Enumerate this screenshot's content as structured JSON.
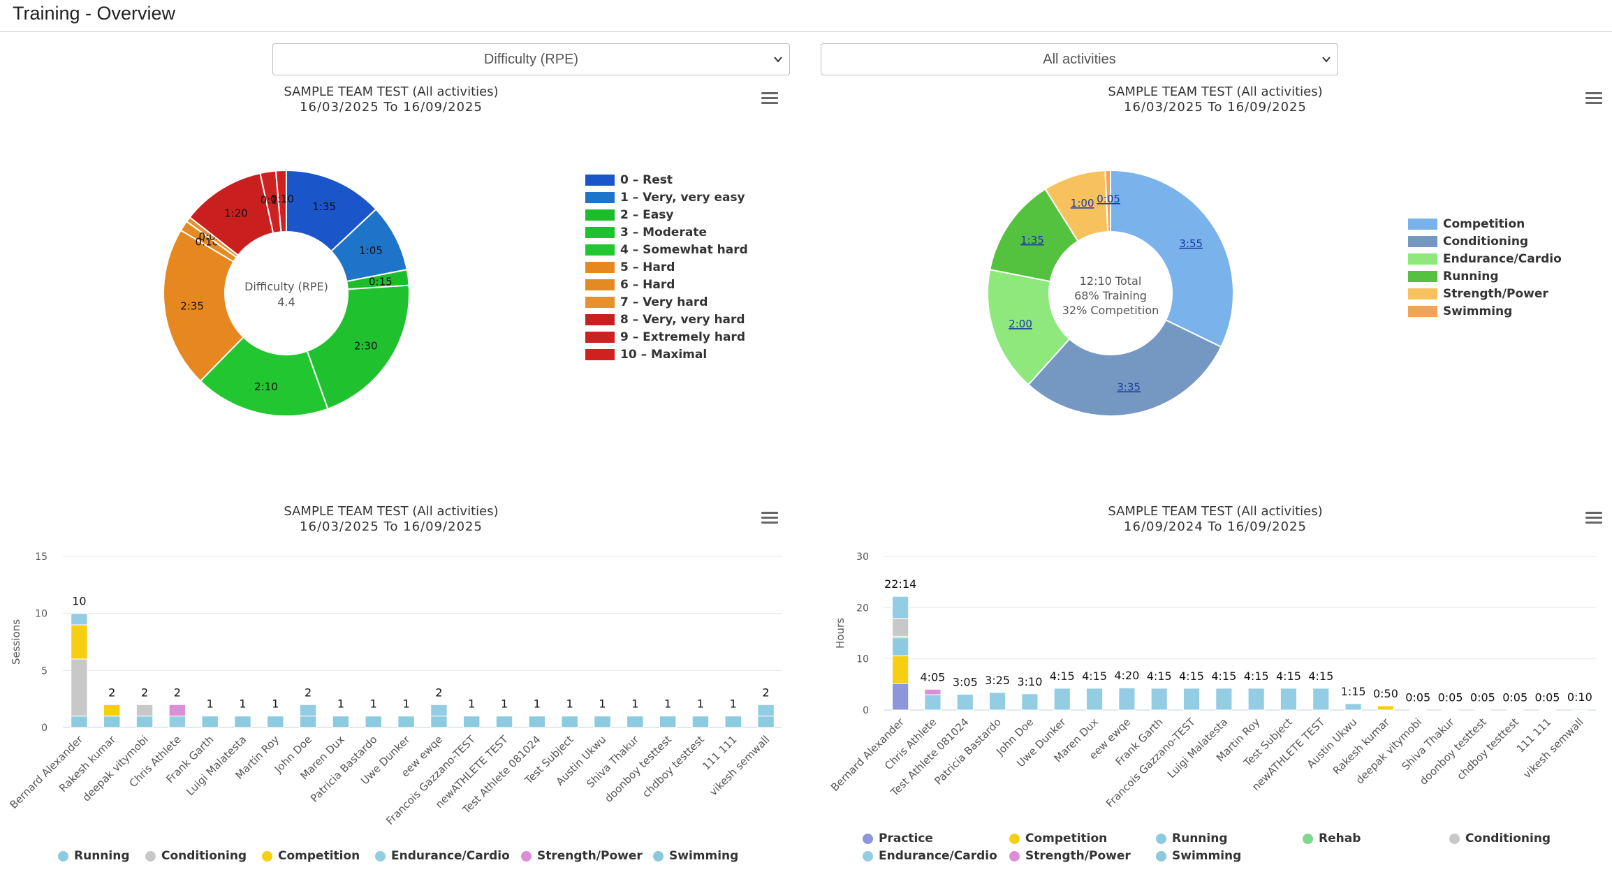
{
  "page": {
    "title": "Training - Overview"
  },
  "filters": {
    "left_select": "Difficulty (RPE)",
    "right_select": "All activities"
  },
  "chart_data": [
    {
      "type": "pie",
      "title": "SAMPLE TEAM TEST (All activities)",
      "subtitle": "16/03/2025 To 16/09/2025",
      "center_label": "Difficulty (RPE)",
      "center_value": "4.4",
      "slices": [
        {
          "label": "0 – Rest",
          "value": 95,
          "text": "1:35",
          "color": "#1a56c9"
        },
        {
          "label": "1 – Very, very easy",
          "value": 65,
          "text": "1:05",
          "color": "#1e74c8"
        },
        {
          "label": "2 – Easy",
          "value": 15,
          "text": "0:15",
          "color": "#1cbd2a"
        },
        {
          "label": "3 – Moderate",
          "value": 150,
          "text": "2:30",
          "color": "#1fc22e"
        },
        {
          "label": "4 – Somewhat hard",
          "value": 130,
          "text": "2:10",
          "color": "#22c631"
        },
        {
          "label": "5 – Hard",
          "value": 155,
          "text": "2:35",
          "color": "#e6881f"
        },
        {
          "label": "6 – Hard",
          "value": 10,
          "text": "0:10",
          "color": "#e38a22"
        },
        {
          "label": "7 – Very hard",
          "value": 5,
          "text": "0:05",
          "color": "#e69030"
        },
        {
          "label": "8 – Very, very hard",
          "value": 80,
          "text": "1:20",
          "color": "#c91f1f"
        },
        {
          "label": "9 – Extremely hard",
          "value": 15,
          "text": "0:15",
          "color": "#cc2222"
        },
        {
          "label": "10 – Maximal",
          "value": 10,
          "text": "0:10",
          "color": "#d02020"
        }
      ]
    },
    {
      "type": "pie",
      "title": "SAMPLE TEAM TEST (All activities)",
      "subtitle": "16/03/2025 To 16/09/2025",
      "center_lines": [
        "12:10 Total",
        "68% Training",
        "32% Competition"
      ],
      "slices": [
        {
          "label": "Competition",
          "value": 235,
          "text": "3:55",
          "color": "#7ab3ec"
        },
        {
          "label": "Conditioning",
          "value": 215,
          "text": "3:35",
          "color": "#7598c2"
        },
        {
          "label": "Endurance/Cardio",
          "value": 120,
          "text": "2:00",
          "color": "#8ee87b"
        },
        {
          "label": "Running",
          "value": 95,
          "text": "1:35",
          "color": "#55c23f"
        },
        {
          "label": "Strength/Power",
          "value": 60,
          "text": "1:00",
          "color": "#f7c25e"
        },
        {
          "label": "Swimming",
          "value": 5,
          "text": "0:05",
          "color": "#f2a35a"
        }
      ]
    },
    {
      "type": "bar",
      "title": "SAMPLE TEAM TEST (All activities)",
      "subtitle": "16/03/2025 To 16/09/2025",
      "ylabel": "Sessions",
      "ylim": [
        0,
        15
      ],
      "yticks": [
        "0",
        "5",
        "10",
        "15"
      ],
      "categories": [
        "Bernard Alexander",
        "Rakesh kumar",
        "deepak vitymobi",
        "Chris Athlete",
        "Frank Garth",
        "Luigi Malatesta",
        "Martin Roy",
        "John Doe",
        "Maren Dux",
        "Patricia Bastardo",
        "Uwe Dunker",
        "eew ewqe",
        "Francois Gazzano-TEST",
        "newATHLETE TEST",
        "Test Athlete 081024",
        "Test Subject",
        "Austin Ukwu",
        "Shiva Thakur",
        "doonboy testtest",
        "chdboy testtest",
        "111 111",
        "vikesh semwall"
      ],
      "totals": [
        "10",
        "2",
        "2",
        "2",
        "1",
        "1",
        "1",
        "2",
        "1",
        "1",
        "1",
        "2",
        "1",
        "1",
        "1",
        "1",
        "1",
        "1",
        "1",
        "1",
        "1",
        "2"
      ],
      "series": [
        {
          "name": "Running",
          "color": "#8ccbdf",
          "values": [
            1,
            1,
            1,
            0,
            1,
            1,
            1,
            1,
            1,
            1,
            1,
            1,
            1,
            1,
            1,
            1,
            1,
            1,
            1,
            1,
            1,
            1
          ]
        },
        {
          "name": "Conditioning",
          "color": "#c8c8c8",
          "values": [
            5,
            0,
            1,
            0,
            0,
            0,
            0,
            0,
            0,
            0,
            0,
            0,
            0,
            0,
            0,
            0,
            0,
            0,
            0,
            0,
            0,
            0
          ]
        },
        {
          "name": "Competition",
          "color": "#f6cf13",
          "values": [
            3,
            1,
            0,
            0,
            0,
            0,
            0,
            0,
            0,
            0,
            0,
            0,
            0,
            0,
            0,
            0,
            0,
            0,
            0,
            0,
            0,
            0
          ]
        },
        {
          "name": "Endurance/Cardio",
          "color": "#93cde4",
          "values": [
            1,
            0,
            0,
            1,
            0,
            0,
            0,
            1,
            0,
            0,
            0,
            1,
            0,
            0,
            0,
            0,
            0,
            0,
            0,
            0,
            0,
            1
          ]
        },
        {
          "name": "Strength/Power",
          "color": "#dc8fd6",
          "values": [
            0,
            0,
            0,
            1,
            0,
            0,
            0,
            0,
            0,
            0,
            0,
            0,
            0,
            0,
            0,
            0,
            0,
            0,
            0,
            0,
            0,
            0
          ]
        },
        {
          "name": "Swimming",
          "color": "#8cc8de",
          "values": [
            0,
            0,
            0,
            0,
            0,
            0,
            0,
            0,
            0,
            0,
            0,
            0,
            0,
            0,
            0,
            0,
            0,
            0,
            0,
            0,
            0,
            0
          ]
        }
      ]
    },
    {
      "type": "bar",
      "title": "SAMPLE TEAM TEST (All activities)",
      "subtitle": "16/09/2024 To 16/09/2025",
      "ylabel": "Hours",
      "ylim": [
        0,
        30
      ],
      "yticks": [
        "0",
        "10",
        "20",
        "30"
      ],
      "categories": [
        "Bernard Alexander",
        "Chris Athlete",
        "Test Athlete 081024",
        "Patricia Bastardo",
        "John Doe",
        "Uwe Dunker",
        "Maren Dux",
        "eew ewqe",
        "Frank Garth",
        "Francois Gazzano-TEST",
        "Luigi Malatesta",
        "Martin Roy",
        "Test Subject",
        "newATHLETE TEST",
        "Austin Ukwu",
        "Rakesh kumar",
        "deepak vitymobi",
        "Shiva Thakur",
        "doonboy testtest",
        "chdboy testtest",
        "111 111",
        "vikesh semwall"
      ],
      "totals": [
        "22:14",
        "4:05",
        "3:05",
        "3:25",
        "3:10",
        "4:15",
        "4:15",
        "4:20",
        "4:15",
        "4:15",
        "4:15",
        "4:15",
        "4:15",
        "4:15",
        "1:15",
        "0:50",
        "0:05",
        "0:05",
        "0:05",
        "0:05",
        "0:05",
        "0:10"
      ],
      "series": [
        {
          "name": "Practice",
          "color": "#8d95db",
          "values": [
            5.2,
            0,
            0,
            0,
            0,
            0,
            0,
            0,
            0,
            0,
            0,
            0,
            0,
            0,
            0,
            0,
            0,
            0,
            0,
            0,
            0,
            0
          ]
        },
        {
          "name": "Competition",
          "color": "#f6cf13",
          "values": [
            5.4,
            0,
            0,
            0,
            0,
            0,
            0,
            0,
            0,
            0,
            0,
            0,
            0,
            0,
            0,
            0.83,
            0,
            0,
            0,
            0,
            0,
            0
          ]
        },
        {
          "name": "Running",
          "color": "#8ccbdf",
          "values": [
            3.5,
            0,
            0,
            0,
            0,
            0,
            0,
            0,
            0,
            0,
            0,
            0,
            0,
            0,
            0,
            0,
            0,
            0,
            0,
            0,
            0,
            0
          ]
        },
        {
          "name": "Rehab",
          "color": "#7bd88d",
          "values": [
            0.3,
            0,
            0,
            0,
            0,
            0,
            0,
            0,
            0,
            0,
            0,
            0,
            0,
            0,
            0,
            0,
            0,
            0,
            0,
            0,
            0,
            0
          ]
        },
        {
          "name": "Conditioning",
          "color": "#c8c8c8",
          "values": [
            3.5,
            0,
            0,
            0,
            0,
            0,
            0,
            0,
            0,
            0,
            0,
            0,
            0,
            0,
            0,
            0,
            0,
            0,
            0,
            0,
            0,
            0
          ]
        },
        {
          "name": "Endurance/Cardio",
          "color": "#93cde4",
          "values": [
            4.3,
            3,
            3.08,
            3.42,
            3.17,
            4.25,
            4.25,
            4.33,
            4.25,
            4.25,
            4.25,
            4.25,
            4.25,
            4.25,
            1.25,
            0,
            0.08,
            0.08,
            0.08,
            0.08,
            0.08,
            0.17
          ]
        },
        {
          "name": "Strength/Power",
          "color": "#dc8fd6",
          "values": [
            0,
            1.05,
            0,
            0,
            0,
            0,
            0,
            0,
            0,
            0,
            0,
            0,
            0,
            0,
            0,
            0,
            0,
            0,
            0,
            0,
            0,
            0
          ]
        },
        {
          "name": "Swimming",
          "color": "#8cc8de",
          "values": [
            0,
            0,
            0,
            0,
            0,
            0,
            0,
            0,
            0,
            0,
            0,
            0,
            0,
            0,
            0,
            0,
            0,
            0,
            0,
            0,
            0,
            0
          ]
        }
      ]
    }
  ]
}
